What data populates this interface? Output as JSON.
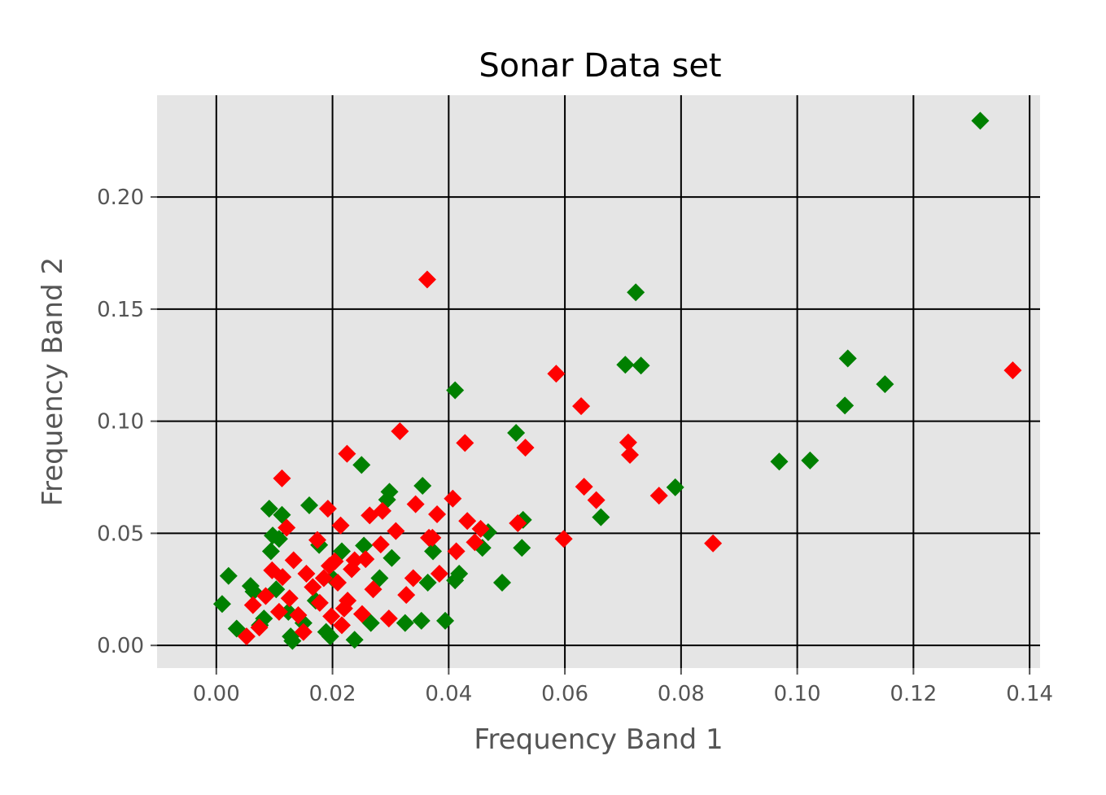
{
  "chart_data": {
    "type": "scatter",
    "title": "Sonar Data set",
    "xlabel": "Frequency Band 1",
    "ylabel": "Frequency Band 2",
    "xlim": [
      -0.0102,
      0.1418
    ],
    "ylim": [
      -0.0101,
      0.2454
    ],
    "xticks": [
      0.0,
      0.02,
      0.04,
      0.06,
      0.08,
      0.1,
      0.12,
      0.14
    ],
    "xtick_labels": [
      "0.00",
      "0.02",
      "0.04",
      "0.06",
      "0.08",
      "0.10",
      "0.12",
      "0.14"
    ],
    "yticks": [
      0.0,
      0.05,
      0.1,
      0.15,
      0.2
    ],
    "ytick_labels": [
      "0.00",
      "0.05",
      "0.10",
      "0.15",
      "0.20"
    ],
    "grid": true,
    "background": "#e5e5e5",
    "grid_color": "#000000",
    "marker": "diamond",
    "series": [
      {
        "color": "#008000",
        "x": [
          0.1315,
          0.0722,
          0.0704,
          0.0731,
          0.1087,
          0.1151,
          0.1082,
          0.0411,
          0.0516,
          0.0969,
          0.1022,
          0.079,
          0.025,
          0.0662,
          0.0528,
          0.0526,
          0.0355,
          0.0298,
          0.0294,
          0.016,
          0.0091,
          0.0113,
          0.0097,
          0.0177,
          0.0254,
          0.0468,
          0.0458,
          0.0418,
          0.0411,
          0.0492,
          0.0364,
          0.0373,
          0.0021,
          0.001,
          0.0035,
          0.0059,
          0.0075,
          0.0094,
          0.0108,
          0.0128,
          0.0131,
          0.015,
          0.0171,
          0.0196,
          0.0216,
          0.0238,
          0.0266,
          0.0302,
          0.0325,
          0.0353,
          0.0394,
          0.0281,
          0.02,
          0.0189,
          0.0124,
          0.0103,
          0.0082,
          0.0064
        ],
        "y": [
          0.234,
          0.1575,
          0.1252,
          0.1248,
          0.128,
          0.1165,
          0.107,
          0.1138,
          0.0948,
          0.082,
          0.0825,
          0.0705,
          0.0805,
          0.0572,
          0.056,
          0.0435,
          0.0712,
          0.0685,
          0.065,
          0.0625,
          0.061,
          0.0582,
          0.049,
          0.0448,
          0.0445,
          0.0505,
          0.0435,
          0.032,
          0.029,
          0.028,
          0.028,
          0.042,
          0.031,
          0.0185,
          0.0075,
          0.0265,
          0.009,
          0.042,
          0.0475,
          0.004,
          0.002,
          0.01,
          0.02,
          0.004,
          0.042,
          0.0025,
          0.01,
          0.039,
          0.01,
          0.011,
          0.011,
          0.03,
          0.03,
          0.006,
          0.015,
          0.025,
          0.012,
          0.024
        ]
      },
      {
        "color": "#ff0000",
        "x": [
          0.0363,
          0.0585,
          0.1371,
          0.0628,
          0.0316,
          0.0428,
          0.0532,
          0.0709,
          0.0712,
          0.0633,
          0.0654,
          0.0762,
          0.0855,
          0.0598,
          0.0225,
          0.0113,
          0.0407,
          0.0519,
          0.038,
          0.0432,
          0.0455,
          0.0343,
          0.0286,
          0.0264,
          0.0214,
          0.0192,
          0.0121,
          0.0174,
          0.0309,
          0.0238,
          0.0195,
          0.0155,
          0.0133,
          0.0096,
          0.0114,
          0.0085,
          0.0063,
          0.0052,
          0.0074,
          0.0141,
          0.0166,
          0.0185,
          0.0209,
          0.0226,
          0.0251,
          0.027,
          0.0297,
          0.0327,
          0.0339,
          0.0372,
          0.0384,
          0.0413,
          0.0445,
          0.0204,
          0.0178,
          0.0216,
          0.0233,
          0.0108,
          0.0126,
          0.0257,
          0.0283,
          0.0366,
          0.015,
          0.0198,
          0.022
        ],
        "y": [
          0.1632,
          0.1212,
          0.1227,
          0.1067,
          0.0955,
          0.0903,
          0.0882,
          0.0905,
          0.085,
          0.0708,
          0.0648,
          0.0668,
          0.0455,
          0.0475,
          0.0855,
          0.0745,
          0.0655,
          0.0545,
          0.0585,
          0.0555,
          0.052,
          0.063,
          0.06,
          0.058,
          0.0535,
          0.061,
          0.0525,
          0.047,
          0.051,
          0.038,
          0.0355,
          0.032,
          0.038,
          0.0335,
          0.0305,
          0.022,
          0.018,
          0.004,
          0.008,
          0.0135,
          0.026,
          0.03,
          0.028,
          0.02,
          0.014,
          0.025,
          0.012,
          0.0225,
          0.03,
          0.048,
          0.032,
          0.042,
          0.046,
          0.0375,
          0.019,
          0.009,
          0.034,
          0.015,
          0.021,
          0.0385,
          0.045,
          0.048,
          0.006,
          0.013,
          0.0165
        ]
      }
    ]
  }
}
